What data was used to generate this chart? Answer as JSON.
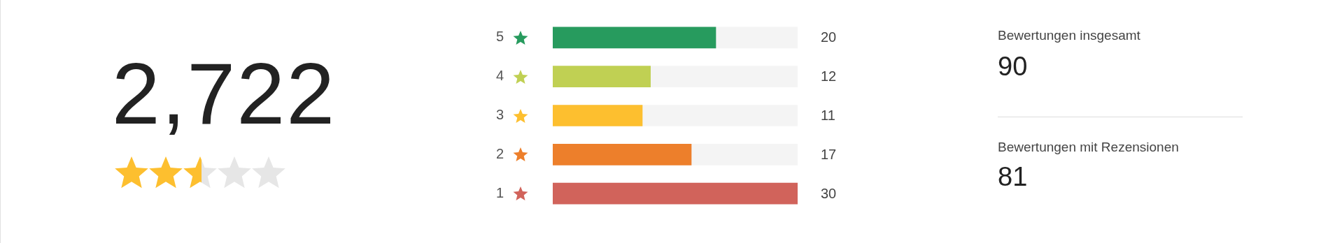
{
  "chart_data": [
    {
      "type": "other",
      "title": "2,722"
    },
    {
      "type": "bar",
      "orientation": "horizontal",
      "categories": [
        "5",
        "4",
        "3",
        "2",
        "1"
      ],
      "values": [
        20,
        12,
        11,
        17,
        30
      ],
      "colors": [
        "#279b5e",
        "#c0d053",
        "#fdbf2f",
        "#ed7f2b",
        "#d1635b"
      ],
      "xlim": [
        0,
        30
      ],
      "data_labels": true,
      "tick_labels": "y"
    },
    {
      "type": "other",
      "annotations": [
        "Bewertungen insgesamt",
        "90",
        "Bewertungen mit Rezensionen",
        "81"
      ]
    }
  ]
}
